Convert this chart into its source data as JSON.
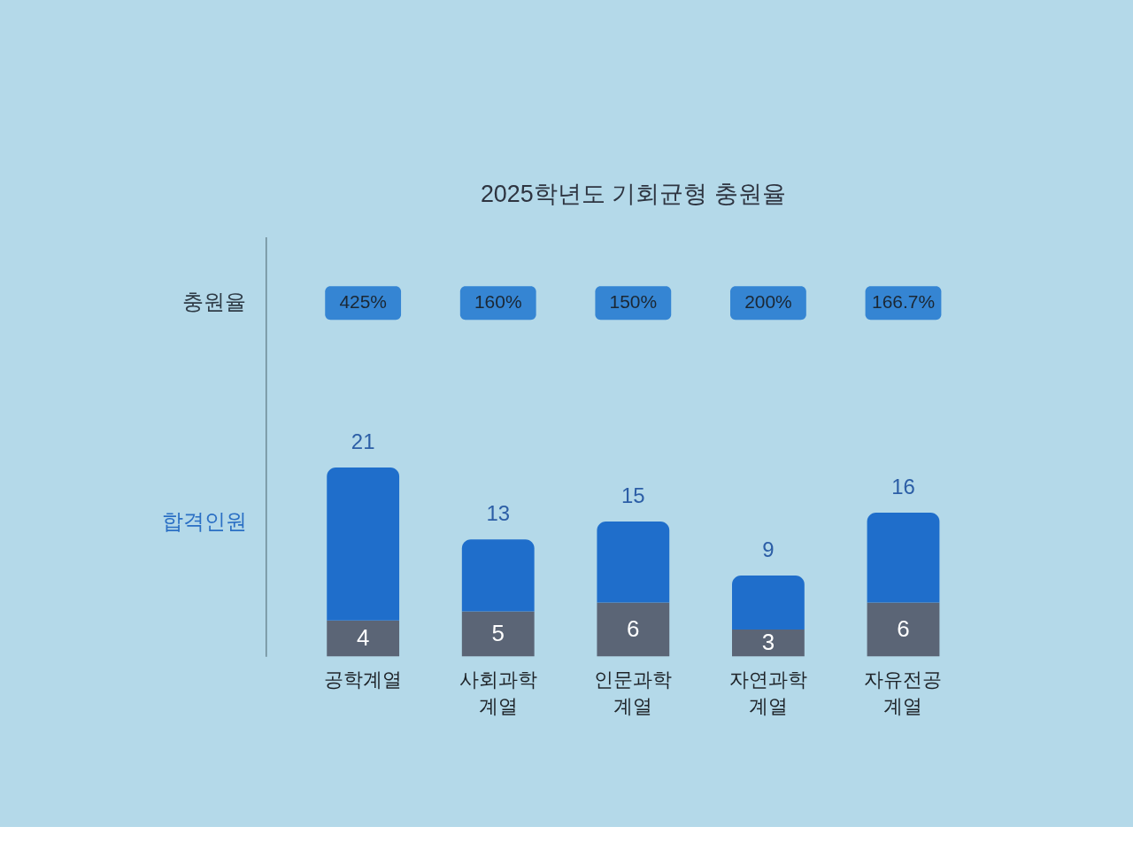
{
  "chart_data": {
    "type": "bar",
    "title": "2025학년도 기회균형 충원율",
    "ylabel": "합격인원",
    "categories": [
      "공학계열",
      "사회과학 계열",
      "인문과학 계열",
      "자연과학 계열",
      "자유전공 계열"
    ],
    "stacked": true,
    "series": [
      {
        "color": "#5b6576",
        "values": [
          4,
          5,
          6,
          3,
          6
        ],
        "value_labels": [
          "4",
          "5",
          "6",
          "3",
          "6"
        ]
      },
      {
        "color": "#1f6ecb",
        "values": [
          17,
          8,
          9,
          6,
          10
        ]
      }
    ],
    "totals": [
      "21",
      "13",
      "15",
      "9",
      "16"
    ],
    "annotations": [
      "충원율",
      "425%",
      "160%",
      "150%",
      "200%",
      "166.7%"
    ],
    "tick_labels": "x"
  }
}
